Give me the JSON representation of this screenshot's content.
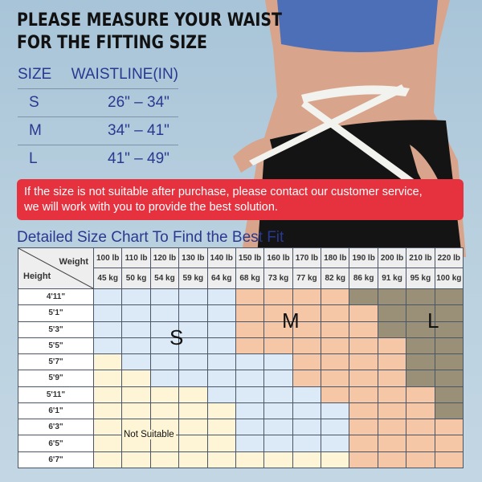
{
  "title_lines": [
    "PLEASE MEASURE YOUR WAIST",
    "FOR THE FITTING SIZE"
  ],
  "size_table": {
    "headers": [
      "SIZE",
      "WAISTLINE(IN)"
    ],
    "rows": [
      {
        "size": "S",
        "range": "26\" – 34\""
      },
      {
        "size": "M",
        "range": "34\" – 41\""
      },
      {
        "size": "L",
        "range": "41\" – 49\""
      }
    ]
  },
  "notice": [
    "If the size is not suitable after purchase, please contact our customer service,",
    "we will work with you to provide the best solution."
  ],
  "chart_title": "Detailed Size Chart To Find the Best Fit",
  "chart_data": {
    "type": "table",
    "corner": {
      "weight": "Weight",
      "height": "Height"
    },
    "weights_lb": [
      "100 lb",
      "110 lb",
      "120 lb",
      "130 lb",
      "140 lb",
      "150 lb",
      "160 lb",
      "170 lb",
      "180 lb",
      "190 lb",
      "200 lb",
      "210 lb",
      "220 lb"
    ],
    "weights_kg": [
      "45 kg",
      "50 kg",
      "54 kg",
      "59 kg",
      "64 kg",
      "68 kg",
      "73 kg",
      "77 kg",
      "82 kg",
      "86 kg",
      "91 kg",
      "95 kg",
      "100 kg"
    ],
    "heights": [
      "4'11\"",
      "5'1\"",
      "5'3\"",
      "5'5\"",
      "5'7\"",
      "5'9\"",
      "5'11\"",
      "6'1\"",
      "6'3\"",
      "6'5\"",
      "6'7\""
    ],
    "grid": [
      "SSSSSMMMMLLLL",
      "SSSSSMMMMMLLL",
      "SSSSSMMMMMLLL",
      "SSSSSMMMMMMLL",
      "NSSSSSSMMMMLL",
      "NNSSSSSMMMMLL",
      "NNNNSSSSMMMML",
      "NNNNNSSSSMMML",
      "NNNNNSSSSMMMM",
      "NNNNNSSSSMMMM",
      "NNNNNNNNNMMMM"
    ],
    "legend": {
      "S": "S",
      "M": "M",
      "L": "L",
      "N": "Not Suitable"
    },
    "colors": {
      "S": "#dce9f7",
      "M": "#f6c7a6",
      "L": "#9a8f77",
      "N": "#fdf5d6"
    }
  },
  "colors": {
    "accent_blue": "#2a3990",
    "banner_red": "#e6323f"
  }
}
